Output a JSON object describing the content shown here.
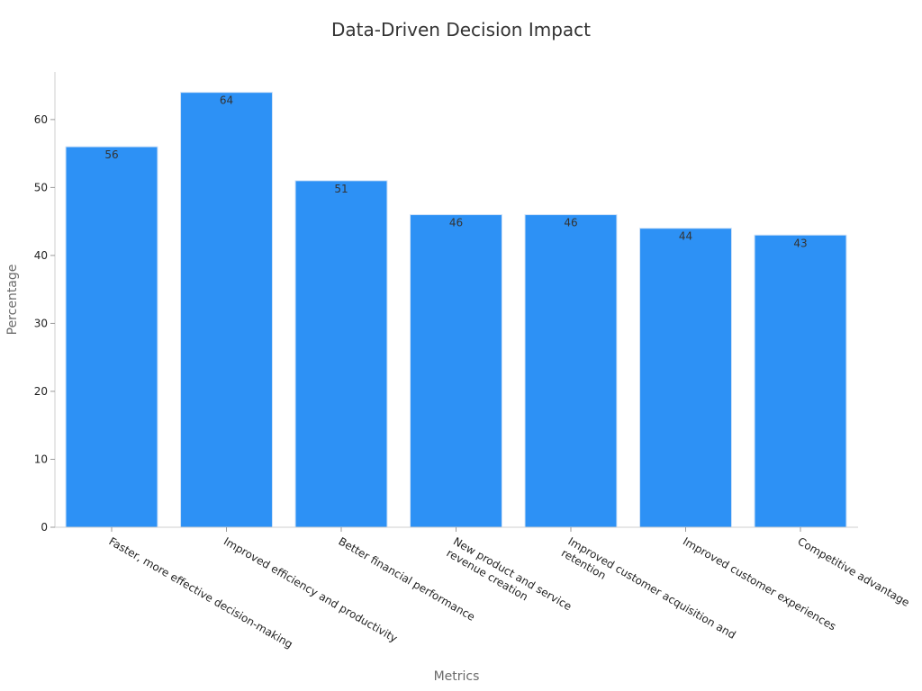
{
  "chart_data": {
    "type": "bar",
    "title": "Data-Driven Decision Impact",
    "xlabel": "Metrics",
    "ylabel": "Percentage",
    "ylim": [
      0,
      67
    ],
    "yticks": [
      0,
      10,
      20,
      30,
      40,
      50,
      60
    ],
    "grid": false,
    "categories": [
      [
        "Faster, more effective decision-making"
      ],
      [
        "Improved efficiency and productivity"
      ],
      [
        "Better financial performance"
      ],
      [
        "New product and service",
        "revenue creation"
      ],
      [
        "Improved customer acquisition and",
        "retention"
      ],
      [
        "Improved customer experiences"
      ],
      [
        "Competitive advantage"
      ]
    ],
    "values": [
      56,
      64,
      51,
      46,
      46,
      44,
      43
    ],
    "bar_color": "#2d91f5",
    "bar_edge_color": "#cfe2f7"
  }
}
